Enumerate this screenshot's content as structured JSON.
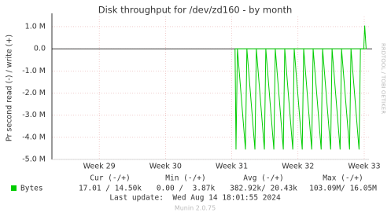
{
  "chart_data": {
    "type": "line",
    "title": "Disk throughput for /dev/zd160 - by month",
    "y_label": "Pr second read (-) / write (+)",
    "side_label": "RRDTOOL / TOBI OETIKER",
    "x": [
      19.35,
      19.45,
      19.6,
      20.45,
      20.6,
      21.45,
      21.6,
      22.45,
      22.6,
      23.45,
      23.6,
      24.45,
      24.6,
      25.45,
      25.6,
      26.45,
      26.6,
      27.45,
      27.6,
      28.45,
      28.6,
      29.45,
      29.6,
      30.45,
      30.6,
      31.45,
      31.6,
      32.45,
      32.6,
      32.95,
      33.05,
      33.2
    ],
    "series": [
      {
        "color": "#00cc00",
        "values": [
          0,
          -4550000,
          0,
          -4550000,
          0,
          -4550000,
          0,
          -4550000,
          0,
          -4550000,
          0,
          -4550000,
          0,
          -4550000,
          0,
          -4550000,
          0,
          -4550000,
          0,
          -4550000,
          0,
          -4550000,
          0,
          -4550000,
          0,
          -4550000,
          0,
          -4550000,
          0,
          0,
          0,
          0
        ]
      },
      {
        "color": "#00cc00",
        "values": [
          0,
          0,
          0,
          0,
          0,
          0,
          0,
          0,
          0,
          0,
          0,
          0,
          0,
          0,
          0,
          0,
          0,
          0,
          0,
          0,
          0,
          0,
          0,
          0,
          0,
          0,
          0,
          0,
          0,
          0,
          1050000,
          0
        ]
      }
    ],
    "xlim": [
      0,
      33.5
    ],
    "xticks": [
      {
        "value": 5,
        "label": "Week 29"
      },
      {
        "value": 12,
        "label": "Week 30"
      },
      {
        "value": 19,
        "label": "Week 31"
      },
      {
        "value": 26,
        "label": "Week 32"
      },
      {
        "value": 33,
        "label": "Week 33"
      }
    ],
    "ylim": [
      -5000000,
      1460000
    ],
    "yticks": [
      {
        "value": 1000000,
        "label": "1.0 M"
      },
      {
        "value": 0,
        "label": "0.0"
      },
      {
        "value": -1000000,
        "label": "-1.0 M"
      },
      {
        "value": -2000000,
        "label": "-2.0 M"
      },
      {
        "value": -3000000,
        "label": "-3.0 M"
      },
      {
        "value": -4000000,
        "label": "-4.0 M"
      },
      {
        "value": -5000000,
        "label": "-5.0 M"
      }
    ],
    "grid": true,
    "legend": {
      "color": "#00cc00",
      "label": "Bytes",
      "headers": [
        "Cur (-/+)",
        "Min (-/+)",
        "Avg (-/+)",
        "Max (-/+)"
      ],
      "cells": [
        "17.01 / 14.50k",
        "0.00 /  3.87k",
        "382.92k/ 20.43k",
        "103.09M/ 16.05M"
      ]
    },
    "last_update": "Last update:  Wed Aug 14 18:01:55 2024",
    "footer": "Munin 2.0.75"
  }
}
